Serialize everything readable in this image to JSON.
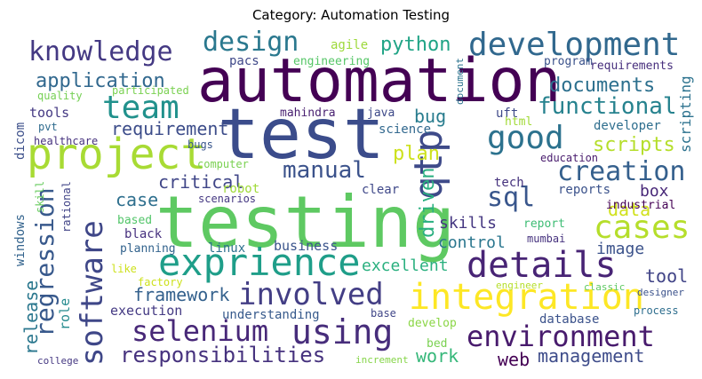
{
  "title": "Category: Automation Testing",
  "word_cloud": {
    "words": [
      {
        "text": "automation",
        "color": "#440154"
      },
      {
        "text": "test",
        "color": "#3b4c8b"
      },
      {
        "text": "testing",
        "color": "#5ec962"
      },
      {
        "text": "project",
        "color": "#a8db34"
      },
      {
        "text": "development",
        "color": "#31688e"
      },
      {
        "text": "knowledge",
        "color": "#443983"
      },
      {
        "text": "design",
        "color": "#2a788e"
      },
      {
        "text": "team",
        "color": "#21918c"
      },
      {
        "text": "good",
        "color": "#2c728e"
      },
      {
        "text": "qtp",
        "color": "#3e4a89"
      },
      {
        "text": "exprience",
        "color": "#1f9e89"
      },
      {
        "text": "details",
        "color": "#482475"
      },
      {
        "text": "integration",
        "color": "#fde725"
      },
      {
        "text": "involved",
        "color": "#433e85"
      },
      {
        "text": "selenium",
        "color": "#482878"
      },
      {
        "text": "using",
        "color": "#472d7b"
      },
      {
        "text": "environment",
        "color": "#481b6d"
      },
      {
        "text": "software",
        "color": "#3f4788"
      },
      {
        "text": "regression",
        "color": "#38598c"
      },
      {
        "text": "cases",
        "color": "#b5de2b"
      },
      {
        "text": "creation",
        "color": "#35608d"
      },
      {
        "text": "manual",
        "color": "#3b528b"
      },
      {
        "text": "functional",
        "color": "#26828e"
      },
      {
        "text": "sql",
        "color": "#39568c"
      },
      {
        "text": "documents",
        "color": "#2d708e"
      },
      {
        "text": "application",
        "color": "#31688e"
      },
      {
        "text": "python",
        "color": "#20a486"
      },
      {
        "text": "requirement",
        "color": "#3d4d8a"
      },
      {
        "text": "responsibilities",
        "color": "#46327e"
      },
      {
        "text": "plan",
        "color": "#cde11d"
      },
      {
        "text": "scripts",
        "color": "#b5de2b"
      },
      {
        "text": "critical",
        "color": "#404688"
      },
      {
        "text": "driven",
        "color": "#29af7f"
      },
      {
        "text": "case",
        "color": "#2e6f8e"
      },
      {
        "text": "bug",
        "color": "#287c8e"
      },
      {
        "text": "framework",
        "color": "#34618d"
      },
      {
        "text": "release",
        "color": "#2a778e"
      },
      {
        "text": "work",
        "color": "#35b779"
      },
      {
        "text": "web",
        "color": "#440154"
      },
      {
        "text": "management",
        "color": "#3e4c8a"
      },
      {
        "text": "excellent",
        "color": "#2ab07f"
      },
      {
        "text": "control",
        "color": "#2a768e"
      },
      {
        "text": "skills",
        "color": "#453781"
      },
      {
        "text": "data",
        "color": "#d0e11c"
      },
      {
        "text": "tool",
        "color": "#414487"
      },
      {
        "text": "image",
        "color": "#3b528b"
      },
      {
        "text": "box",
        "color": "#482878"
      },
      {
        "text": "scripting",
        "color": "#2c728e"
      },
      {
        "text": "business",
        "color": "#3a548c"
      },
      {
        "text": "execution",
        "color": "#443a83"
      },
      {
        "text": "understanding",
        "color": "#375a8c"
      },
      {
        "text": "dicom",
        "color": "#3c4f8a"
      },
      {
        "text": "tools",
        "color": "#443983"
      },
      {
        "text": "windows",
        "color": "#33638d"
      },
      {
        "text": "role",
        "color": "#238a8d"
      },
      {
        "text": "agile",
        "color": "#9dd93b"
      },
      {
        "text": "pacs",
        "color": "#3f4889"
      },
      {
        "text": "engineering",
        "color": "#56c667"
      },
      {
        "text": "program",
        "color": "#3b528b"
      },
      {
        "text": "requirements",
        "color": "#472f7d"
      },
      {
        "text": "document",
        "color": "#2c738e"
      },
      {
        "text": "quality",
        "color": "#75d054"
      },
      {
        "text": "participated",
        "color": "#7ad151"
      },
      {
        "text": "pvt",
        "color": "#2f6b8e"
      },
      {
        "text": "healthcare",
        "color": "#46327e"
      },
      {
        "text": "mahindra",
        "color": "#481f70"
      },
      {
        "text": "java",
        "color": "#3e4a89"
      },
      {
        "text": "science",
        "color": "#31688e"
      },
      {
        "text": "uft",
        "color": "#3e4989"
      },
      {
        "text": "html",
        "color": "#a2da37"
      },
      {
        "text": "developer",
        "color": "#2e6e8e"
      },
      {
        "text": "bugs",
        "color": "#39568c"
      },
      {
        "text": "computer",
        "color": "#7ad151"
      },
      {
        "text": "education",
        "color": "#481b6d"
      },
      {
        "text": "tech",
        "color": "#46337e"
      },
      {
        "text": "robot",
        "color": "#a0da39"
      },
      {
        "text": "scenarios",
        "color": "#453882"
      },
      {
        "text": "clear",
        "color": "#3f4889"
      },
      {
        "text": "reports",
        "color": "#3b528b"
      },
      {
        "text": "industrial",
        "color": "#440154"
      },
      {
        "text": "skill",
        "color": "#66cb5d"
      },
      {
        "text": "rational",
        "color": "#414487"
      },
      {
        "text": "based",
        "color": "#52c569"
      },
      {
        "text": "black",
        "color": "#46307e"
      },
      {
        "text": "planning",
        "color": "#33638d"
      },
      {
        "text": "linux",
        "color": "#2d708e"
      },
      {
        "text": "report",
        "color": "#3dbc74"
      },
      {
        "text": "mumbai",
        "color": "#46327e"
      },
      {
        "text": "like",
        "color": "#cde11d"
      },
      {
        "text": "factory",
        "color": "#cde11d"
      },
      {
        "text": "engineer",
        "color": "#b5de2b"
      },
      {
        "text": "classic",
        "color": "#5ec962"
      },
      {
        "text": "designer",
        "color": "#3b528b"
      },
      {
        "text": "base",
        "color": "#404688"
      },
      {
        "text": "develop",
        "color": "#8bd646"
      },
      {
        "text": "database",
        "color": "#3b528b"
      },
      {
        "text": "process",
        "color": "#2e6e8e"
      },
      {
        "text": "bed",
        "color": "#7ad151"
      },
      {
        "text": "college",
        "color": "#453882"
      },
      {
        "text": "increment",
        "color": "#86d549"
      }
    ]
  }
}
